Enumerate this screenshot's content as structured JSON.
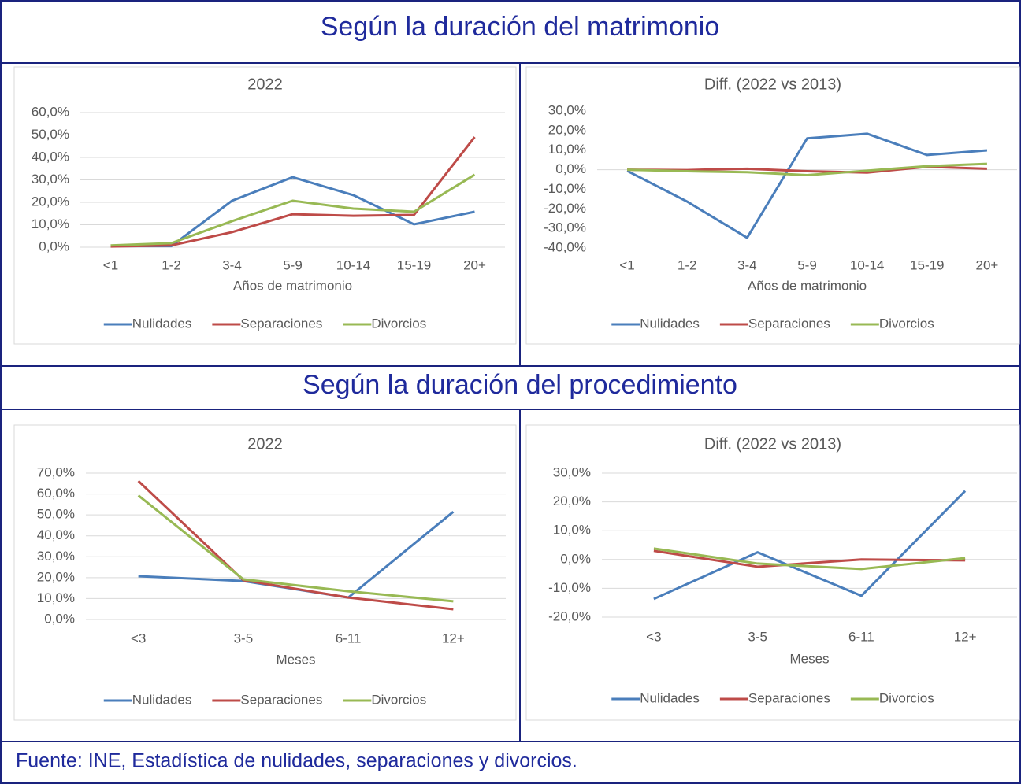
{
  "sections": [
    "Según la duración del matrimonio",
    "Según la duración del procedimiento"
  ],
  "source": "Fuente: INE, Estadística de nulidades, separaciones y divorcios.",
  "chart_data": [
    {
      "type": "line",
      "title": "2022",
      "x_label": "Años de matrimonio",
      "categories": [
        "<1",
        "1-2",
        "3-4",
        "5-9",
        "10-14",
        "15-19",
        "20+"
      ],
      "ylim": [
        0,
        60
      ],
      "yticks": [
        {
          "value": 0,
          "label": "0,0%"
        },
        {
          "value": 10,
          "label": "10,0%"
        },
        {
          "value": 20,
          "label": "20,0%"
        },
        {
          "value": 30,
          "label": "30,0%"
        },
        {
          "value": 40,
          "label": "40,0%"
        },
        {
          "value": 50,
          "label": "50,0%"
        },
        {
          "value": 60,
          "label": "60,0%"
        }
      ],
      "grid": true,
      "legend": "bottom",
      "series": [
        {
          "name": "Nulidades",
          "color": "#4a7ebb",
          "values": [
            0.5,
            0.5,
            20.7,
            31.2,
            23.2,
            10.2,
            15.8
          ]
        },
        {
          "name": "Separaciones",
          "color": "#be4b48",
          "values": [
            0.3,
            0.8,
            6.7,
            14.7,
            14.0,
            14.4,
            49.1
          ]
        },
        {
          "name": "Divorcios",
          "color": "#98b954",
          "values": [
            0.8,
            1.8,
            11.6,
            20.7,
            17.2,
            15.8,
            32.3
          ]
        }
      ]
    },
    {
      "type": "line",
      "title": "Diff. (2022 vs 2013)",
      "x_label": "Años de matrimonio",
      "categories": [
        "<1",
        "1-2",
        "3-4",
        "5-9",
        "10-14",
        "15-19",
        "20+"
      ],
      "ylim": [
        -40,
        30
      ],
      "yticks": [
        {
          "value": -40,
          "label": "-40,0%"
        },
        {
          "value": -30,
          "label": "-30,0%"
        },
        {
          "value": -20,
          "label": "-20,0%"
        },
        {
          "value": -10,
          "label": "-10,0%"
        },
        {
          "value": 0,
          "label": "0,0%"
        },
        {
          "value": 10,
          "label": "10,0%"
        },
        {
          "value": 20,
          "label": "20,0%"
        },
        {
          "value": 30,
          "label": "30,0%"
        }
      ],
      "grid": false,
      "legend": "bottom",
      "series": [
        {
          "name": "Nulidades",
          "color": "#4a7ebb",
          "values": [
            -0.6,
            -16.3,
            -34.8,
            16.0,
            18.4,
            7.5,
            9.9
          ]
        },
        {
          "name": "Separaciones",
          "color": "#be4b48",
          "values": [
            0,
            -0.2,
            0.5,
            -0.8,
            -1.5,
            1.5,
            0.5
          ]
        },
        {
          "name": "Divorcios",
          "color": "#98b954",
          "values": [
            0,
            -0.8,
            -1.3,
            -2.8,
            -0.5,
            1.8,
            3.0
          ]
        }
      ]
    },
    {
      "type": "line",
      "title": "2022",
      "x_label": "Meses",
      "categories": [
        "<3",
        "3-5",
        "6-11",
        "12+"
      ],
      "ylim": [
        0,
        70
      ],
      "yticks": [
        {
          "value": 0,
          "label": "0,0%"
        },
        {
          "value": 10,
          "label": "10,0%"
        },
        {
          "value": 20,
          "label": "20,0%"
        },
        {
          "value": 30,
          "label": "30,0%"
        },
        {
          "value": 40,
          "label": "40,0%"
        },
        {
          "value": 50,
          "label": "50,0%"
        },
        {
          "value": 60,
          "label": "60,0%"
        },
        {
          "value": 70,
          "label": "70,0%"
        }
      ],
      "grid": true,
      "legend": "bottom",
      "series": [
        {
          "name": "Nulidades",
          "color": "#4a7ebb",
          "values": [
            20.7,
            18.4,
            10.5,
            51.5
          ]
        },
        {
          "name": "Separaciones",
          "color": "#be4b48",
          "values": [
            66.2,
            18.8,
            10.5,
            4.9
          ]
        },
        {
          "name": "Divorcios",
          "color": "#98b954",
          "values": [
            59.3,
            19.2,
            13.5,
            8.7
          ]
        }
      ]
    },
    {
      "type": "line",
      "title": "Diff. (2022 vs 2013)",
      "x_label": "Meses",
      "categories": [
        "<3",
        "3-5",
        "6-11",
        "12+"
      ],
      "ylim": [
        -20,
        30
      ],
      "yticks": [
        {
          "value": -20,
          "label": "-20,0%"
        },
        {
          "value": -10,
          "label": "-10,0%"
        },
        {
          "value": 0,
          "label": "0,0%"
        },
        {
          "value": 10,
          "label": "10,0%"
        },
        {
          "value": 20,
          "label": "20,0%"
        },
        {
          "value": 30,
          "label": "30,0%"
        }
      ],
      "grid": true,
      "legend": "bottom",
      "series": [
        {
          "name": "Nulidades",
          "color": "#4a7ebb",
          "values": [
            -13.7,
            2.5,
            -12.6,
            23.8
          ]
        },
        {
          "name": "Separaciones",
          "color": "#be4b48",
          "values": [
            3.0,
            -2.5,
            0,
            -0.3
          ]
        },
        {
          "name": "Divorcios",
          "color": "#98b954",
          "values": [
            3.8,
            -1.4,
            -3.3,
            0.5
          ]
        }
      ]
    }
  ]
}
